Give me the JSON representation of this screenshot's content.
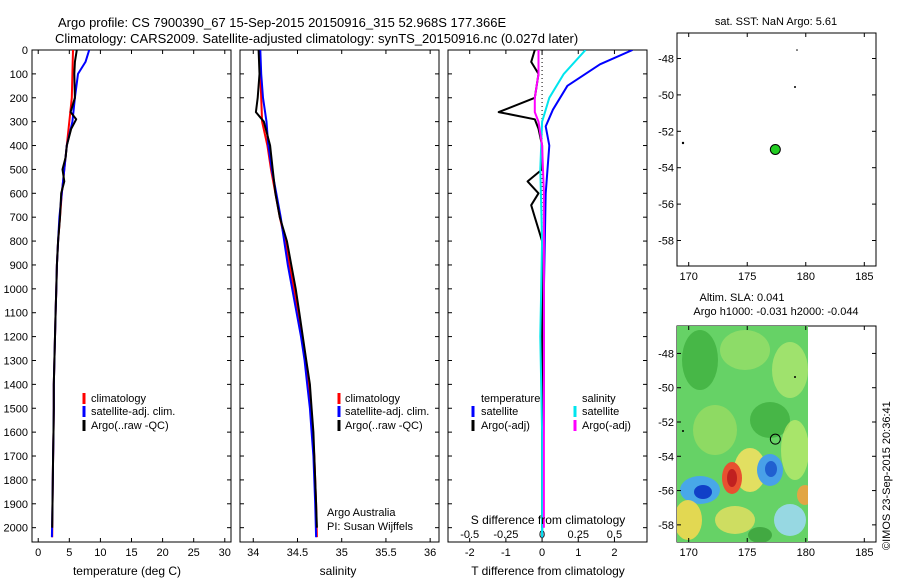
{
  "header": {
    "line1": "Argo profile: CS 7900390_67 15-Sep-2015 20150916_315 52.968S 177.366E",
    "line2": "Climatology: CARS2009. Satellite-adjusted climatology: synTS_20150916.nc (0.027d later)"
  },
  "colors": {
    "climatology": "#ff0000",
    "satellite": "#0000ff",
    "argo": "#000000",
    "s_satellite": "#00e5ee",
    "s_argo": "#ff00ff",
    "dot": "#22cc22"
  },
  "chart_data": [
    {
      "type": "line",
      "xlabel": "temperature (deg C)",
      "ylabel": "",
      "xlim": [
        -1,
        31
      ],
      "ylim": [
        2060,
        0
      ],
      "xticks": [
        0,
        5,
        10,
        15,
        20,
        25,
        30
      ],
      "yticks": [
        0,
        100,
        200,
        300,
        400,
        500,
        600,
        700,
        800,
        900,
        1000,
        1100,
        1200,
        1300,
        1400,
        1500,
        1600,
        1700,
        1800,
        1900,
        2000
      ],
      "legend": [
        "climatology",
        "satellite-adj. clim.",
        "Argo(..raw -QC)"
      ],
      "legend_position": "lower-middle",
      "series": [
        {
          "name": "climatology",
          "color": "#ff0000",
          "points": [
            [
              5.6,
              0
            ],
            [
              5.5,
              100
            ],
            [
              5.4,
              200
            ],
            [
              5.0,
              300
            ],
            [
              4.6,
              400
            ],
            [
              4.2,
              500
            ],
            [
              3.8,
              600
            ],
            [
              3.5,
              700
            ],
            [
              3.2,
              800
            ],
            [
              3.0,
              900
            ],
            [
              2.9,
              1000
            ],
            [
              2.8,
              1100
            ],
            [
              2.7,
              1200
            ],
            [
              2.6,
              1300
            ],
            [
              2.5,
              1400
            ],
            [
              2.5,
              1500
            ],
            [
              2.45,
              1600
            ],
            [
              2.4,
              1700
            ],
            [
              2.35,
              1800
            ],
            [
              2.3,
              1900
            ],
            [
              2.25,
              2040
            ]
          ]
        },
        {
          "name": "satellite-adj. clim.",
          "color": "#0000ff",
          "points": [
            [
              8.2,
              0
            ],
            [
              7.6,
              50
            ],
            [
              6.4,
              100
            ],
            [
              5.9,
              200
            ],
            [
              5.5,
              300
            ],
            [
              4.6,
              400
            ],
            [
              4.2,
              500
            ],
            [
              3.8,
              600
            ],
            [
              3.4,
              700
            ],
            [
              3.2,
              800
            ],
            [
              3.0,
              900
            ],
            [
              2.9,
              1000
            ],
            [
              2.8,
              1100
            ],
            [
              2.7,
              1200
            ],
            [
              2.6,
              1300
            ],
            [
              2.5,
              1400
            ],
            [
              2.5,
              1500
            ],
            [
              2.45,
              1600
            ],
            [
              2.4,
              1700
            ],
            [
              2.35,
              1800
            ],
            [
              2.3,
              1900
            ],
            [
              2.2,
              2040
            ]
          ]
        },
        {
          "name": "Argo(..raw -QC)",
          "color": "#000000",
          "points": [
            [
              6.2,
              0
            ],
            [
              5.9,
              50
            ],
            [
              5.8,
              100
            ],
            [
              5.9,
              200
            ],
            [
              5.2,
              260
            ],
            [
              6.1,
              290
            ],
            [
              5.3,
              330
            ],
            [
              4.6,
              400
            ],
            [
              4.4,
              450
            ],
            [
              3.9,
              500
            ],
            [
              4.2,
              550
            ],
            [
              3.7,
              600
            ],
            [
              3.5,
              700
            ],
            [
              3.2,
              800
            ],
            [
              3.0,
              900
            ],
            [
              2.9,
              1000
            ],
            [
              2.8,
              1100
            ],
            [
              2.7,
              1200
            ],
            [
              2.6,
              1300
            ],
            [
              2.5,
              1400
            ],
            [
              2.5,
              1500
            ],
            [
              2.45,
              1600
            ],
            [
              2.4,
              1700
            ],
            [
              2.35,
              1800
            ],
            [
              2.3,
              1900
            ],
            [
              2.25,
              2000
            ]
          ]
        }
      ]
    },
    {
      "type": "line",
      "xlabel": "salinity",
      "xlim": [
        33.85,
        36.1
      ],
      "ylim": [
        2060,
        0
      ],
      "xticks": [
        34,
        34.5,
        35,
        35.5,
        36
      ],
      "legend": [
        "climatology",
        "satellite-adj. clim.",
        "Argo(..raw -QC)"
      ],
      "legend_position": "lower-middle",
      "annotations": [
        "Argo Australia",
        "PI: Susan Wijffels"
      ],
      "series": [
        {
          "name": "climatology",
          "color": "#ff0000",
          "points": [
            [
              34.07,
              0
            ],
            [
              34.08,
              100
            ],
            [
              34.09,
              200
            ],
            [
              34.1,
              300
            ],
            [
              34.16,
              400
            ],
            [
              34.2,
              500
            ],
            [
              34.25,
              600
            ],
            [
              34.3,
              700
            ],
            [
              34.36,
              800
            ],
            [
              34.41,
              900
            ],
            [
              34.46,
              1000
            ],
            [
              34.51,
              1100
            ],
            [
              34.55,
              1200
            ],
            [
              34.59,
              1300
            ],
            [
              34.62,
              1400
            ],
            [
              34.65,
              1500
            ],
            [
              34.67,
              1600
            ],
            [
              34.69,
              1700
            ],
            [
              34.7,
              1800
            ],
            [
              34.71,
              1900
            ],
            [
              34.72,
              2040
            ]
          ]
        },
        {
          "name": "satellite-adj. clim.",
          "color": "#0000ff",
          "points": [
            [
              34.08,
              0
            ],
            [
              34.09,
              100
            ],
            [
              34.11,
              200
            ],
            [
              34.15,
              300
            ],
            [
              34.17,
              400
            ],
            [
              34.21,
              500
            ],
            [
              34.26,
              600
            ],
            [
              34.31,
              700
            ],
            [
              34.35,
              800
            ],
            [
              34.39,
              900
            ],
            [
              34.44,
              1000
            ],
            [
              34.49,
              1100
            ],
            [
              34.54,
              1200
            ],
            [
              34.58,
              1300
            ],
            [
              34.61,
              1400
            ],
            [
              34.64,
              1500
            ],
            [
              34.66,
              1600
            ],
            [
              34.68,
              1700
            ],
            [
              34.69,
              1800
            ],
            [
              34.7,
              1900
            ],
            [
              34.71,
              2040
            ]
          ]
        },
        {
          "name": "Argo(..raw -QC)",
          "color": "#000000",
          "points": [
            [
              34.06,
              0
            ],
            [
              34.07,
              100
            ],
            [
              34.05,
              200
            ],
            [
              34.03,
              260
            ],
            [
              34.12,
              300
            ],
            [
              34.19,
              400
            ],
            [
              34.22,
              500
            ],
            [
              34.25,
              600
            ],
            [
              34.3,
              700
            ],
            [
              34.38,
              800
            ],
            [
              34.43,
              900
            ],
            [
              34.48,
              1000
            ],
            [
              34.52,
              1100
            ],
            [
              34.56,
              1200
            ],
            [
              34.6,
              1300
            ],
            [
              34.64,
              1400
            ],
            [
              34.66,
              1500
            ],
            [
              34.68,
              1600
            ],
            [
              34.69,
              1700
            ],
            [
              34.7,
              1800
            ],
            [
              34.71,
              1900
            ],
            [
              34.72,
              2000
            ]
          ]
        }
      ]
    },
    {
      "type": "line",
      "title_bottom": "S difference from climatology",
      "xlabel": "T difference from climatology",
      "xlim": [
        -2.6,
        2.9
      ],
      "ylim": [
        2060,
        0
      ],
      "xticks": [
        -2,
        -1,
        0,
        1,
        2
      ],
      "s_ticklabels": [
        "-0.5",
        "-0.25",
        "0",
        "0.25",
        "0.5"
      ],
      "legend": [
        "temperature",
        "satellite",
        "Argo(-adj)",
        "salinity",
        "satellite",
        "Argo(-adj)"
      ],
      "legend_position": "lower-middle",
      "series": [
        {
          "name": "satellite",
          "group": "temperature",
          "color": "#0000ff",
          "points": [
            [
              2.5,
              0
            ],
            [
              1.6,
              60
            ],
            [
              0.7,
              150
            ],
            [
              0.3,
              250
            ],
            [
              0.1,
              320
            ],
            [
              0.2,
              400
            ],
            [
              0.1,
              600
            ],
            [
              0.05,
              1000
            ],
            [
              0.05,
              1500
            ],
            [
              0.0,
              2040
            ]
          ]
        },
        {
          "name": "Argo(-adj)",
          "group": "temperature",
          "color": "#000000",
          "points": [
            [
              -0.2,
              0
            ],
            [
              -0.3,
              50
            ],
            [
              -0.1,
              100
            ],
            [
              -0.2,
              200
            ],
            [
              -1.2,
              260
            ],
            [
              -0.2,
              290
            ],
            [
              -0.1,
              330
            ],
            [
              0.0,
              400
            ],
            [
              0.0,
              500
            ],
            [
              -0.4,
              550
            ],
            [
              -0.1,
              600
            ],
            [
              -0.3,
              650
            ],
            [
              -0.2,
              700
            ],
            [
              0.0,
              800
            ],
            [
              0.0,
              1000
            ],
            [
              0.0,
              1500
            ],
            [
              0.0,
              2000
            ]
          ]
        },
        {
          "name": "satellite",
          "group": "salinity",
          "color": "#00e5ee",
          "points": [
            [
              1.2,
              0
            ],
            [
              0.6,
              100
            ],
            [
              0.2,
              200
            ],
            [
              0.0,
              300
            ],
            [
              -0.05,
              500
            ],
            [
              0.0,
              800
            ],
            [
              -0.05,
              1200
            ],
            [
              0.0,
              1600
            ],
            [
              0.0,
              2040
            ]
          ]
        },
        {
          "name": "Argo(-adj)",
          "group": "salinity",
          "color": "#ff00ff",
          "points": [
            [
              -0.1,
              0
            ],
            [
              -0.1,
              100
            ],
            [
              -0.2,
              200
            ],
            [
              -0.2,
              260
            ],
            [
              -0.1,
              300
            ],
            [
              0.0,
              400
            ],
            [
              0.05,
              600
            ],
            [
              0.05,
              1000
            ],
            [
              0.05,
              1500
            ],
            [
              0.05,
              2000
            ]
          ]
        }
      ]
    },
    {
      "type": "scatter",
      "title": "sat. SST: NaN Argo: 5.61",
      "xlim": [
        169,
        186
      ],
      "ylim": [
        -59.4,
        -46.6
      ],
      "xticks": [
        170,
        175,
        180,
        185
      ],
      "yticks": [
        -48,
        -50,
        -52,
        -54,
        -56,
        -58
      ],
      "points": [
        [
          177.4,
          -53.0
        ]
      ]
    },
    {
      "type": "heatmap",
      "title": "Altim. SLA: 0.041",
      "subtitle": "Argo h1000: -0.031 h2000: -0.044",
      "xlim": [
        169,
        186
      ],
      "ylim": [
        -59.0,
        -46.4
      ],
      "xticks": [
        170,
        175,
        180,
        185
      ],
      "yticks": [
        -48,
        -50,
        -52,
        -54,
        -56,
        -58
      ],
      "points": [
        [
          177.4,
          -53.0
        ]
      ]
    }
  ],
  "watermark": "©IMOS 23-Sep-2015 20:36:41"
}
